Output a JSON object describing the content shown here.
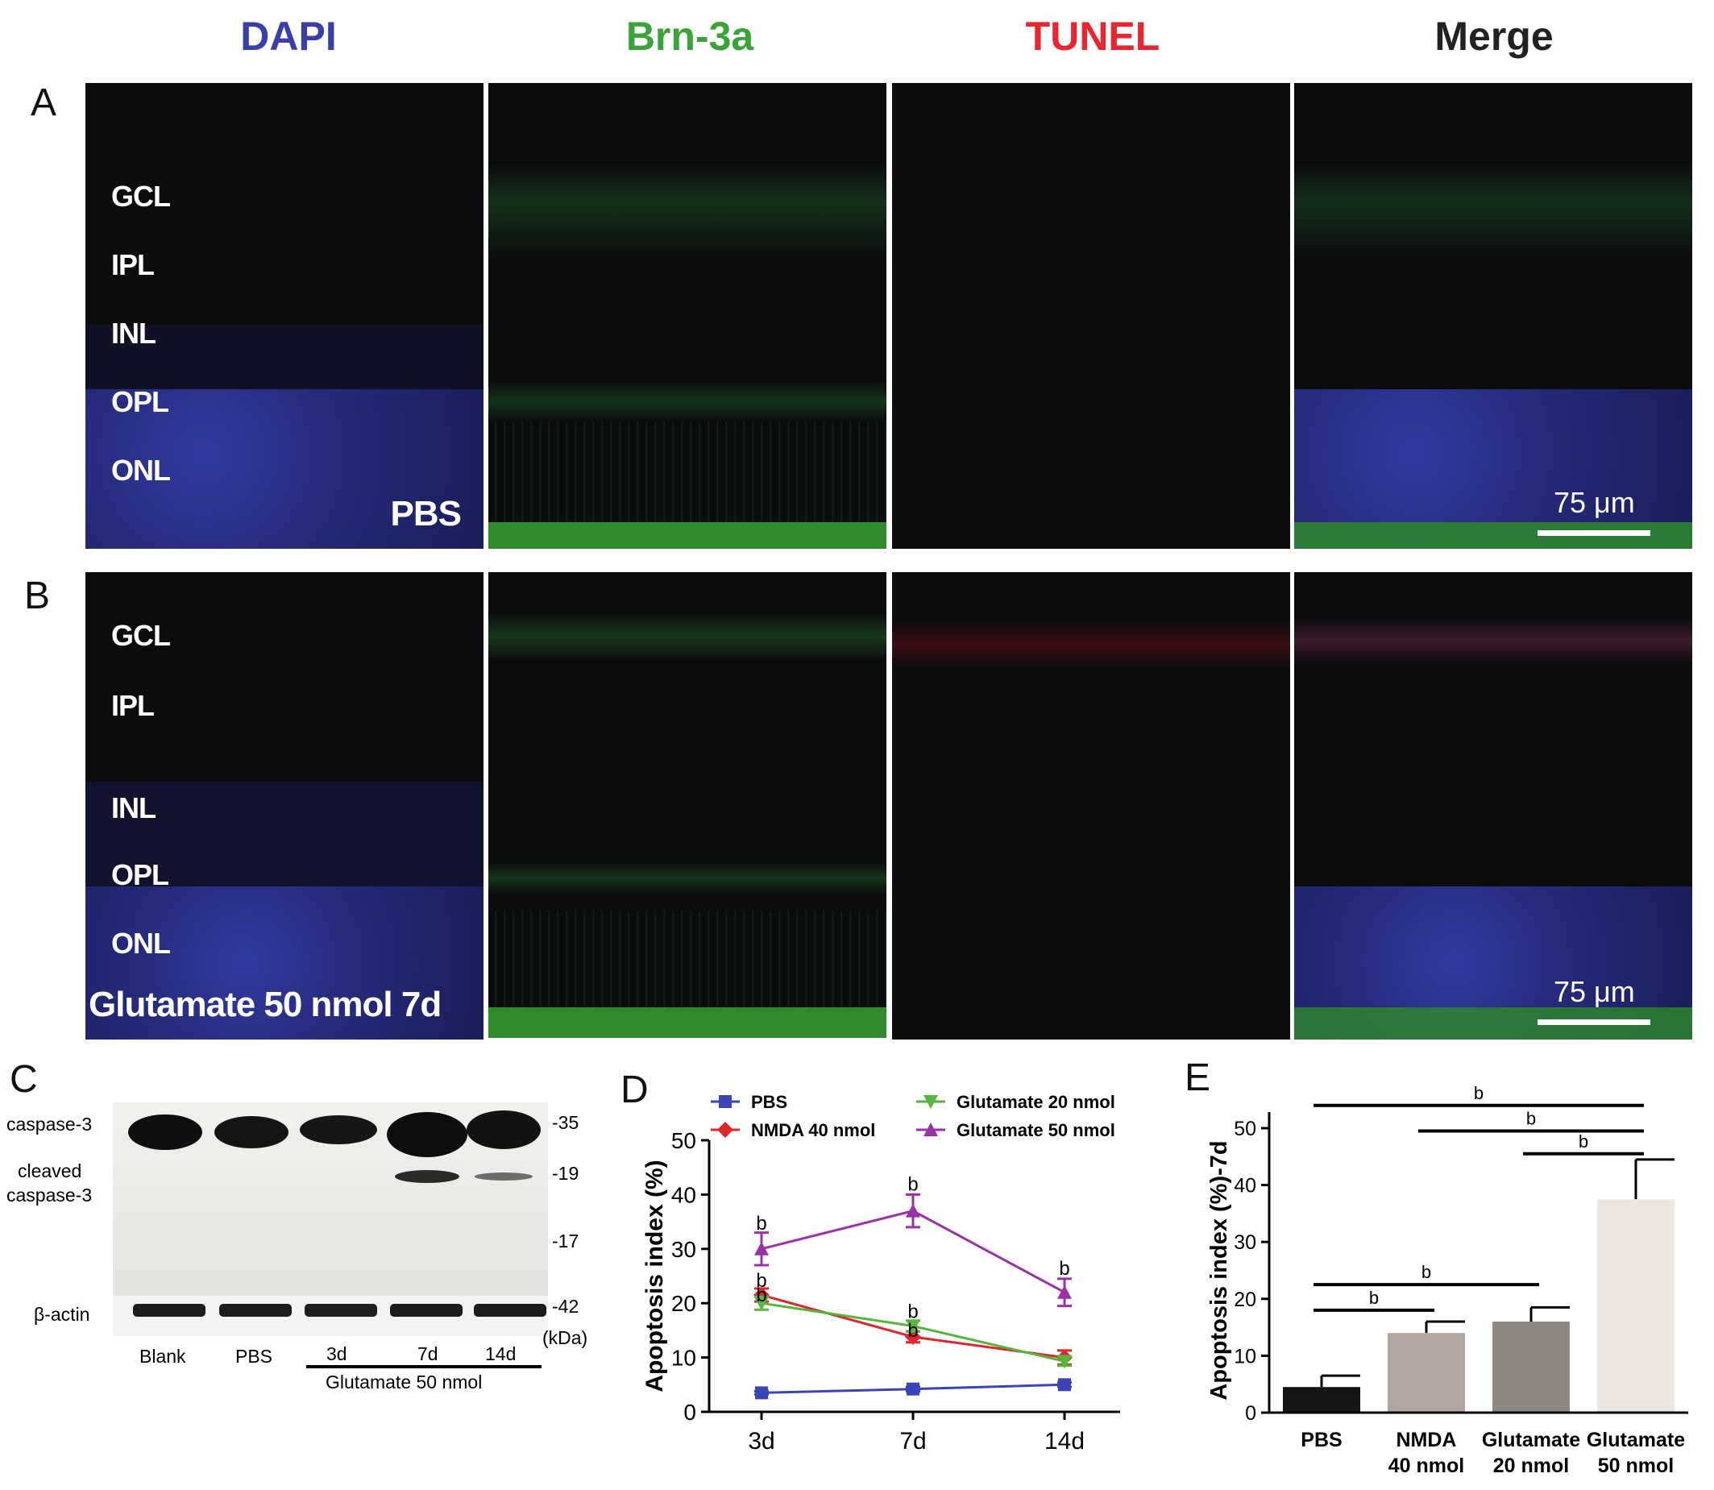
{
  "columns": {
    "dapi": {
      "label": "DAPI",
      "color": "#3a3fa8"
    },
    "brn3a": {
      "label": "Brn-3a",
      "color": "#3aa33a"
    },
    "tunel": {
      "label": "TUNEL",
      "color": "#e8262f"
    },
    "merge": {
      "label": "Merge",
      "color": "#222222"
    }
  },
  "panels": {
    "a": "A",
    "b": "B",
    "c": "C",
    "d": "D",
    "e": "E"
  },
  "row_a": {
    "layers": [
      "GCL",
      "IPL",
      "INL",
      "OPL",
      "ONL"
    ],
    "condition": "PBS",
    "scale": "75 μm"
  },
  "row_b": {
    "layers": [
      "GCL",
      "IPL",
      "INL",
      "OPL",
      "ONL"
    ],
    "condition": "Glutamate 50 nmol 7d",
    "scale": "75 μm"
  },
  "western": {
    "labels": {
      "caspase3": "caspase-3",
      "cleaved1": "cleaved",
      "cleaved2": "caspase-3",
      "actin": "β-actin"
    },
    "markers": [
      "-35",
      "-19",
      "-17",
      "-42"
    ],
    "unit": "(kDa)",
    "lanes": [
      "Blank",
      "PBS",
      "3d",
      "7d",
      "14d"
    ],
    "group": "Glutamate 50 nmol"
  },
  "chart_data": [
    {
      "type": "line",
      "ylabel": "Apoptosis index (%)",
      "xlabel": "",
      "categories": [
        "3d",
        "7d",
        "14d"
      ],
      "ylim": [
        0,
        50
      ],
      "yticks": [
        0,
        10,
        20,
        30,
        40,
        50
      ],
      "legend_position": "top",
      "series": [
        {
          "name": "PBS",
          "values": [
            3.5,
            4.2,
            5.0
          ],
          "color": "#3b45b8",
          "marker": "square",
          "errors": [
            0.3,
            0.4,
            0.4
          ]
        },
        {
          "name": "NMDA 40 nmol",
          "values": [
            21.5,
            13.8,
            10.0
          ],
          "color": "#e0262a",
          "marker": "diamond",
          "errors": [
            1.2,
            1.0,
            1.3
          ]
        },
        {
          "name": "Glutamate 20 nmol",
          "values": [
            20.0,
            15.8,
            9.3
          ],
          "color": "#56b53c",
          "marker": "triangle-down",
          "errors": [
            1.2,
            1.0,
            0.8
          ]
        },
        {
          "name": "Glutamate 50 nmol",
          "values": [
            30.0,
            37.0,
            22.0
          ],
          "color": "#9b31a8",
          "marker": "triangle-up",
          "errors": [
            3.0,
            3.0,
            2.5
          ]
        }
      ],
      "annotations": [
        {
          "text": "b",
          "x": "3d",
          "y": 33.5
        },
        {
          "text": "b",
          "x": "3d",
          "y": 23.0
        },
        {
          "text": "b",
          "x": "3d",
          "y": 20.3
        },
        {
          "text": "b",
          "x": "7d",
          "y": 40.7
        },
        {
          "text": "b",
          "x": "7d",
          "y": 17.3
        },
        {
          "text": "b",
          "x": "7d",
          "y": 13.8
        },
        {
          "text": "b",
          "x": "14d",
          "y": 25.2
        }
      ]
    },
    {
      "type": "bar",
      "ylabel": "Apoptosis index (%)-7d",
      "xlabel": "",
      "categories": [
        [
          "PBS",
          ""
        ],
        [
          "NMDA",
          "40 nmol"
        ],
        [
          "Glutamate",
          "20 nmol"
        ],
        [
          "Glutamate",
          "50 nmol"
        ]
      ],
      "values": [
        4.5,
        14.0,
        16.0,
        37.5
      ],
      "errors": [
        2.0,
        2.0,
        2.5,
        7.0
      ],
      "colors": [
        "#151515",
        "#b2a6a1",
        "#8d8681",
        "#ece5e0"
      ],
      "ylim": [
        0,
        50
      ],
      "yticks": [
        0,
        10,
        20,
        30,
        40,
        50
      ],
      "significance": [
        {
          "from": 0,
          "to": 3,
          "label": "b"
        },
        {
          "from": 1,
          "to": 3,
          "label": "b"
        },
        {
          "from": 2,
          "to": 3,
          "label": "b"
        },
        {
          "from": 0,
          "to": 2,
          "label": "b"
        },
        {
          "from": 0,
          "to": 1,
          "label": "b"
        }
      ]
    }
  ]
}
